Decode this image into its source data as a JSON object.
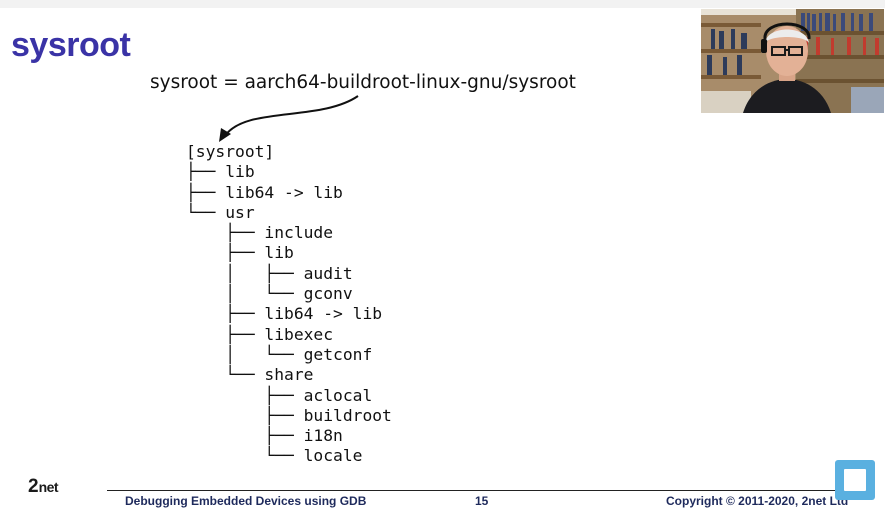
{
  "slide": {
    "title": "sysroot",
    "subtitle": "sysroot = aarch64-buildroot-linux-gnu/sysroot"
  },
  "tree": [
    "[sysroot]",
    "├── lib",
    "├── lib64 -> lib",
    "└── usr",
    "    ├── include",
    "    ├── lib",
    "    │   ├── audit",
    "    │   └── gconv",
    "    ├── lib64 -> lib",
    "    ├── libexec",
    "    │   └── getconf",
    "    └── share",
    "        ├── aclocal",
    "        ├── buildroot",
    "        ├── i18n",
    "        └── locale"
  ],
  "footer": {
    "logo_two": "2",
    "logo_net": "net",
    "course": "Debugging Embedded Devices using GDB",
    "page": "15",
    "copyright": "Copyright © 2011-2020, 2net Ltd"
  },
  "colors": {
    "title": "#3a33a6",
    "footer_text": "#1e2a5c",
    "widget": "#5ab0e0"
  },
  "icons": {
    "corner_widget": "picture-in-picture-icon",
    "arrow": "curved-arrow-icon"
  }
}
